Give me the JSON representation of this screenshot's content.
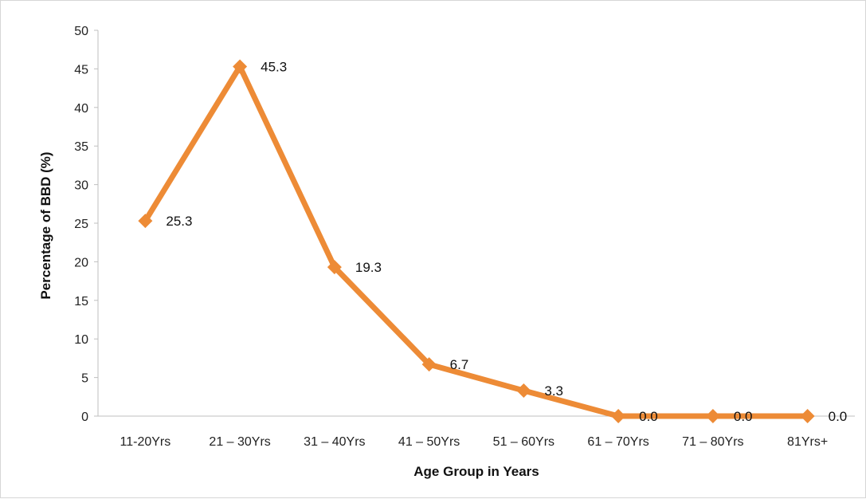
{
  "chart_data": {
    "type": "line",
    "xlabel": "Age Group in Years",
    "ylabel": "Percentage of BBD (%)",
    "categories": [
      "11-20Yrs",
      "21 – 30Yrs",
      "31 – 40Yrs",
      "41 – 50Yrs",
      "51 – 60Yrs",
      "61 – 70Yrs",
      "71 – 80Yrs",
      "81Yrs+"
    ],
    "series": [
      {
        "values": [
          25.3,
          45.3,
          19.3,
          6.7,
          3.3,
          0.0,
          0.0,
          0.0
        ]
      }
    ],
    "data_labels": [
      "25.3",
      "45.3",
      "19.3",
      "6.7",
      "3.3",
      "0.0",
      "0.0",
      "0.0"
    ],
    "ylim": [
      0,
      50
    ],
    "yticks": [
      0,
      5,
      10,
      15,
      20,
      25,
      30,
      35,
      40,
      45,
      50
    ],
    "marker": "diamond",
    "grid": false,
    "legend": "none",
    "colors": {
      "series": "#ED8B36",
      "axis": "#bfbfbf"
    }
  }
}
